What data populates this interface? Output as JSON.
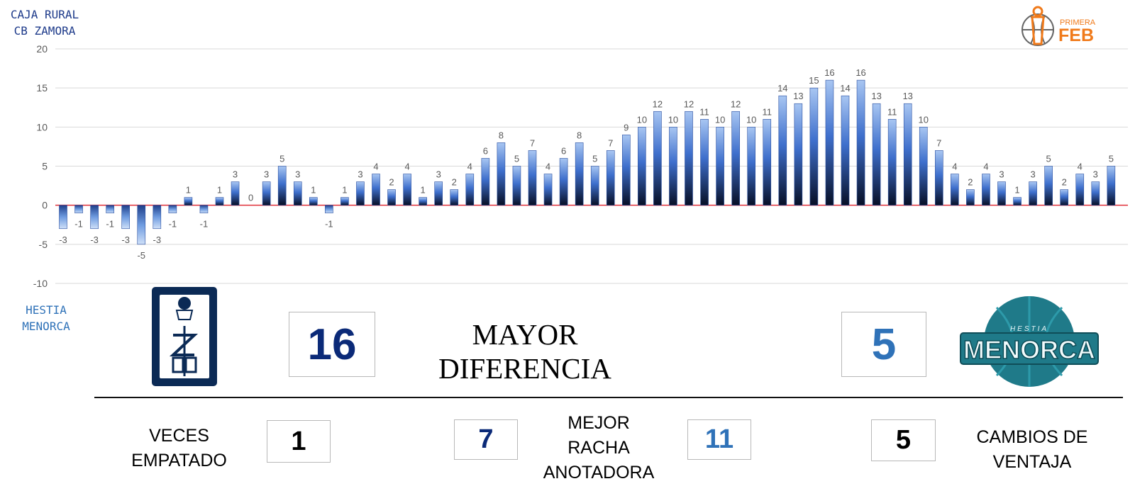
{
  "teams": {
    "home": {
      "name": "CAJA RURAL\nCB ZAMORA",
      "color": "#0b2a78"
    },
    "away": {
      "name": "HESTIA\nMENORCA",
      "color": "#2f72b8",
      "logo_text_top": "HESTIA",
      "logo_text_main": "MENORCA"
    }
  },
  "league_logo": {
    "top": "PRIMERA",
    "main": "FEB",
    "color": "#f07a1a"
  },
  "chart_data": {
    "type": "bar",
    "ylim": [
      -10,
      20
    ],
    "yticks": [
      20,
      15,
      10,
      5,
      0,
      -5,
      -10
    ],
    "grid": true,
    "zero_line_color": "#e0303a",
    "values": [
      -3,
      -1,
      -3,
      -1,
      -3,
      -5,
      -3,
      -1,
      1,
      -1,
      1,
      3,
      0,
      3,
      5,
      3,
      1,
      -1,
      1,
      3,
      4,
      2,
      4,
      1,
      3,
      2,
      4,
      6,
      8,
      5,
      7,
      4,
      6,
      8,
      5,
      7,
      9,
      10,
      12,
      10,
      12,
      11,
      10,
      12,
      10,
      11,
      14,
      13,
      15,
      16,
      14,
      16,
      13,
      11,
      13,
      10,
      7,
      4,
      2,
      4,
      3,
      1,
      3,
      5,
      2,
      4,
      3,
      5
    ]
  },
  "stats": {
    "max_diff": {
      "label": "MAYOR DIFERENCIA",
      "home": "16",
      "away": "5"
    },
    "ties": {
      "label": "VECES\nEMPATADO",
      "value": "1"
    },
    "best_run": {
      "label": "MEJOR\nRACHA\nANOTADORA",
      "home": "7",
      "away": "11"
    },
    "lead_changes": {
      "label": "CAMBIOS DE\nVENTAJA",
      "value": "5"
    }
  }
}
